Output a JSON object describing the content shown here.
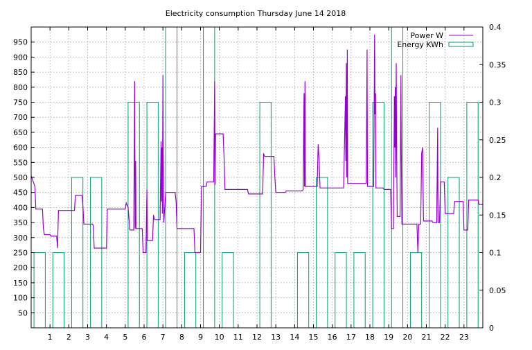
{
  "chart_data": {
    "type": "line",
    "title": "Electricity consumption Thursday June 14 2018",
    "xlabel": "",
    "ylabel": "",
    "y2label": "",
    "xlim": [
      0,
      24
    ],
    "ylim": [
      0,
      1000
    ],
    "y2lim": [
      0,
      0.4
    ],
    "grid": true,
    "legend_position": "top-right",
    "x_ticks": [
      1,
      2,
      3,
      4,
      5,
      6,
      7,
      8,
      9,
      10,
      11,
      12,
      13,
      14,
      15,
      16,
      17,
      18,
      19,
      20,
      21,
      22,
      23
    ],
    "y_ticks": [
      50,
      100,
      150,
      200,
      250,
      300,
      350,
      400,
      450,
      500,
      550,
      600,
      650,
      700,
      750,
      800,
      850,
      900,
      950
    ],
    "y2_ticks": [
      0,
      0.05,
      0.1,
      0.15,
      0.2,
      0.25,
      0.3,
      0.35,
      0.4
    ],
    "series": [
      {
        "name": "Power W",
        "axis": "left",
        "color": "#9400d3",
        "style": "step-line",
        "points": [
          [
            0,
            505
          ],
          [
            0.2,
            470
          ],
          [
            0.25,
            395
          ],
          [
            0.6,
            395
          ],
          [
            0.65,
            330
          ],
          [
            0.7,
            310
          ],
          [
            1.0,
            310
          ],
          [
            1.05,
            305
          ],
          [
            1.35,
            305
          ],
          [
            1.4,
            265
          ],
          [
            1.45,
            390
          ],
          [
            2.3,
            390
          ],
          [
            2.35,
            440
          ],
          [
            2.7,
            440
          ],
          [
            2.75,
            405
          ],
          [
            2.8,
            345
          ],
          [
            3.25,
            345
          ],
          [
            3.3,
            340
          ],
          [
            3.35,
            265
          ],
          [
            4.0,
            265
          ],
          [
            4.05,
            395
          ],
          [
            5.0,
            395
          ],
          [
            5.05,
            415
          ],
          [
            5.15,
            400
          ],
          [
            5.25,
            325
          ],
          [
            5.45,
            325
          ],
          [
            5.5,
            820
          ],
          [
            5.52,
            330
          ],
          [
            5.55,
            555
          ],
          [
            5.57,
            330
          ],
          [
            5.9,
            330
          ],
          [
            5.95,
            250
          ],
          [
            6.1,
            250
          ],
          [
            6.15,
            460
          ],
          [
            6.17,
            290
          ],
          [
            6.45,
            290
          ],
          [
            6.5,
            375
          ],
          [
            6.55,
            360
          ],
          [
            6.85,
            360
          ],
          [
            6.9,
            620
          ],
          [
            6.92,
            420
          ],
          [
            6.95,
            600
          ],
          [
            6.97,
            380
          ],
          [
            7.0,
            840
          ],
          [
            7.02,
            570
          ],
          [
            7.05,
            350
          ],
          [
            7.15,
            450
          ],
          [
            7.65,
            450
          ],
          [
            7.7,
            420
          ],
          [
            7.75,
            330
          ],
          [
            8.65,
            330
          ],
          [
            8.7,
            250
          ],
          [
            9.0,
            250
          ],
          [
            9.05,
            470
          ],
          [
            9.3,
            470
          ],
          [
            9.35,
            485
          ],
          [
            9.7,
            485
          ],
          [
            9.75,
            820
          ],
          [
            9.77,
            475
          ],
          [
            9.8,
            645
          ],
          [
            10.2,
            645
          ],
          [
            10.25,
            565
          ],
          [
            10.3,
            460
          ],
          [
            11.5,
            460
          ],
          [
            11.55,
            445
          ],
          [
            12.3,
            445
          ],
          [
            12.35,
            580
          ],
          [
            12.4,
            570
          ],
          [
            12.9,
            570
          ],
          [
            12.95,
            500
          ],
          [
            13.0,
            450
          ],
          [
            13.5,
            450
          ],
          [
            13.55,
            455
          ],
          [
            14.4,
            455
          ],
          [
            14.45,
            460
          ],
          [
            14.5,
            780
          ],
          [
            14.52,
            470
          ],
          [
            14.55,
            820
          ],
          [
            14.57,
            470
          ],
          [
            15.2,
            470
          ],
          [
            15.25,
            610
          ],
          [
            15.3,
            560
          ],
          [
            15.35,
            465
          ],
          [
            16.2,
            465
          ],
          [
            16.25,
            465
          ],
          [
            16.6,
            465
          ],
          [
            16.7,
            770
          ],
          [
            16.72,
            555
          ],
          [
            16.75,
            880
          ],
          [
            16.77,
            500
          ],
          [
            16.8,
            925
          ],
          [
            16.82,
            480
          ],
          [
            17.8,
            480
          ],
          [
            17.85,
            925
          ],
          [
            17.87,
            470
          ],
          [
            18.2,
            470
          ],
          [
            18.25,
            975
          ],
          [
            18.27,
            710
          ],
          [
            18.3,
            780
          ],
          [
            18.32,
            465
          ],
          [
            18.7,
            465
          ],
          [
            18.75,
            460
          ],
          [
            19.1,
            460
          ],
          [
            19.15,
            330
          ],
          [
            19.25,
            330
          ],
          [
            19.3,
            770
          ],
          [
            19.32,
            600
          ],
          [
            19.35,
            800
          ],
          [
            19.37,
            500
          ],
          [
            19.4,
            880
          ],
          [
            19.42,
            600
          ],
          [
            19.45,
            370
          ],
          [
            19.6,
            370
          ],
          [
            19.65,
            840
          ],
          [
            19.67,
            560
          ],
          [
            19.7,
            345
          ],
          [
            20.5,
            345
          ],
          [
            20.55,
            250
          ],
          [
            20.6,
            345
          ],
          [
            20.7,
            345
          ],
          [
            20.75,
            580
          ],
          [
            20.8,
            600
          ],
          [
            20.85,
            355
          ],
          [
            21.3,
            355
          ],
          [
            21.35,
            350
          ],
          [
            21.55,
            350
          ],
          [
            21.6,
            665
          ],
          [
            21.62,
            350
          ],
          [
            21.7,
            350
          ],
          [
            21.75,
            485
          ],
          [
            21.95,
            485
          ],
          [
            22.0,
            380
          ],
          [
            22.45,
            380
          ],
          [
            22.5,
            420
          ],
          [
            22.95,
            420
          ],
          [
            23.0,
            325
          ],
          [
            23.2,
            325
          ],
          [
            23.25,
            425
          ],
          [
            23.75,
            425
          ],
          [
            23.8,
            410
          ],
          [
            24.0,
            410
          ]
        ]
      },
      {
        "name": "Energy KWh",
        "axis": "right",
        "color": "#009e73",
        "style": "histogram",
        "bars": [
          [
            0,
            0.1
          ],
          [
            1,
            0.1
          ],
          [
            2,
            0.2
          ],
          [
            3,
            0.2
          ],
          [
            5,
            0.3
          ],
          [
            6,
            0.3
          ],
          [
            7,
            0.4
          ],
          [
            9,
            0.4
          ],
          [
            8,
            0.1
          ],
          [
            10,
            0.1
          ],
          [
            12,
            0.3
          ],
          [
            14,
            0.1
          ],
          [
            15,
            0.2
          ],
          [
            16,
            0.1
          ],
          [
            17,
            0.1
          ],
          [
            18,
            0.3
          ],
          [
            19,
            0.4
          ],
          [
            20,
            0.1
          ],
          [
            21,
            0.3
          ],
          [
            22,
            0.2
          ],
          [
            23,
            0.3
          ]
        ]
      }
    ]
  },
  "legend": {
    "power_label": "Power W",
    "energy_label": "Energy KWh"
  }
}
